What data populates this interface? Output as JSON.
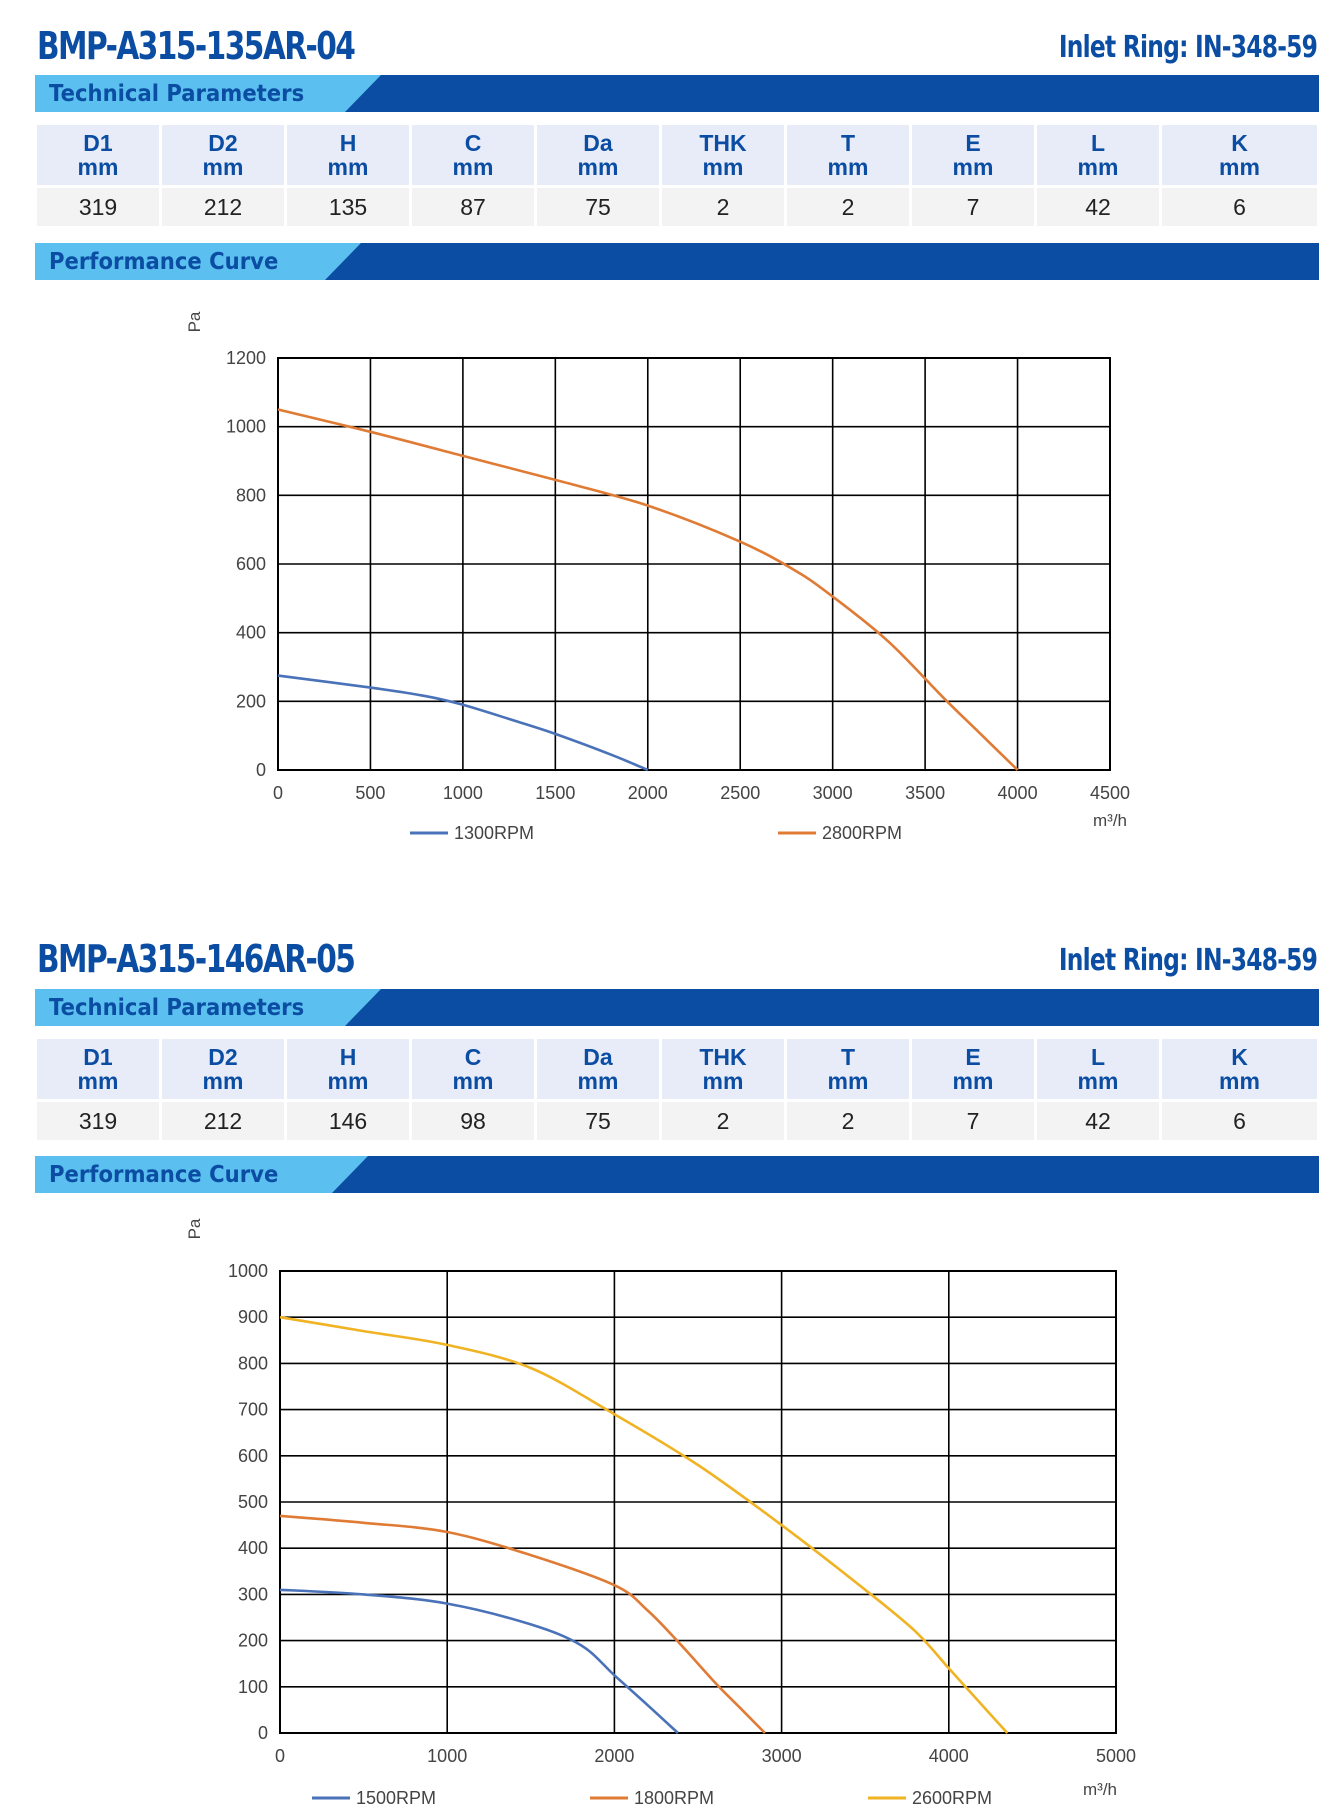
{
  "products": [
    {
      "model": "BMP-A315-135AR-04",
      "inlet_ring": "Inlet Ring: IN-348-59",
      "tech_title": "Technical Parameters",
      "perf_title": "Performance Curve",
      "params": {
        "headers": [
          "D1",
          "D2",
          "H",
          "C",
          "Da",
          "THK",
          "T",
          "E",
          "L",
          "K"
        ],
        "units": [
          "mm",
          "mm",
          "mm",
          "mm",
          "mm",
          "mm",
          "mm",
          "mm",
          "mm",
          "mm"
        ],
        "values": [
          "319",
          "212",
          "135",
          "87",
          "75",
          "2",
          "2",
          "7",
          "42",
          "6"
        ]
      }
    },
    {
      "model": "BMP-A315-146AR-05",
      "inlet_ring": "Inlet Ring: IN-348-59",
      "tech_title": "Technical Parameters",
      "perf_title": "Performance Curve",
      "params": {
        "headers": [
          "D1",
          "D2",
          "H",
          "C",
          "Da",
          "THK",
          "T",
          "E",
          "L",
          "K"
        ],
        "units": [
          "mm",
          "mm",
          "mm",
          "mm",
          "mm",
          "mm",
          "mm",
          "mm",
          "mm",
          "mm"
        ],
        "values": [
          "319",
          "212",
          "146",
          "98",
          "75",
          "2",
          "2",
          "7",
          "42",
          "6"
        ]
      }
    }
  ],
  "chart_data": [
    {
      "type": "line",
      "ylabel": "Pa",
      "xlabel": "m³/h",
      "xlim": [
        0,
        4500
      ],
      "ylim": [
        0,
        1200
      ],
      "xticks": [
        0,
        500,
        1000,
        1500,
        2000,
        2500,
        3000,
        3500,
        4000,
        4500
      ],
      "yticks": [
        0,
        200,
        400,
        600,
        800,
        1000,
        1200
      ],
      "grid": true,
      "legend_position": "bottom",
      "series": [
        {
          "name": "1300RPM",
          "color": "#4a72b8",
          "x": [
            0,
            500,
            800,
            1000,
            1300,
            1500,
            1800,
            2000
          ],
          "y": [
            275,
            240,
            215,
            190,
            140,
            105,
            45,
            0
          ]
        },
        {
          "name": "2800RPM",
          "color": "#e07b35",
          "x": [
            0,
            500,
            1000,
            1500,
            2000,
            2500,
            2800,
            3000,
            3300,
            3600,
            3800,
            4000
          ],
          "y": [
            1050,
            985,
            915,
            845,
            770,
            665,
            580,
            505,
            375,
            210,
            105,
            0
          ]
        }
      ]
    },
    {
      "type": "line",
      "ylabel": "Pa",
      "xlabel": "m³/h",
      "xlim": [
        0,
        5000
      ],
      "ylim": [
        0,
        1000
      ],
      "xticks": [
        0,
        1000,
        2000,
        3000,
        4000,
        5000
      ],
      "yticks": [
        0,
        100,
        200,
        300,
        400,
        500,
        600,
        700,
        800,
        900,
        1000
      ],
      "grid": true,
      "legend_position": "bottom",
      "series": [
        {
          "name": "1500RPM",
          "color": "#4a72b8",
          "x": [
            0,
            500,
            1000,
            1500,
            1800,
            2000,
            2200,
            2380
          ],
          "y": [
            310,
            300,
            280,
            235,
            190,
            125,
            60,
            0
          ]
        },
        {
          "name": "1800RPM",
          "color": "#e07b35",
          "x": [
            0,
            500,
            1000,
            1500,
            2000,
            2200,
            2400,
            2600,
            2750,
            2900
          ],
          "y": [
            470,
            455,
            435,
            385,
            320,
            265,
            190,
            110,
            55,
            0
          ]
        },
        {
          "name": "2600RPM",
          "color": "#f0b323",
          "x": [
            0,
            500,
            1000,
            1500,
            2000,
            2500,
            3000,
            3500,
            3800,
            4000,
            4200,
            4350
          ],
          "y": [
            900,
            870,
            840,
            790,
            690,
            580,
            450,
            310,
            220,
            140,
            60,
            0
          ]
        }
      ]
    }
  ]
}
